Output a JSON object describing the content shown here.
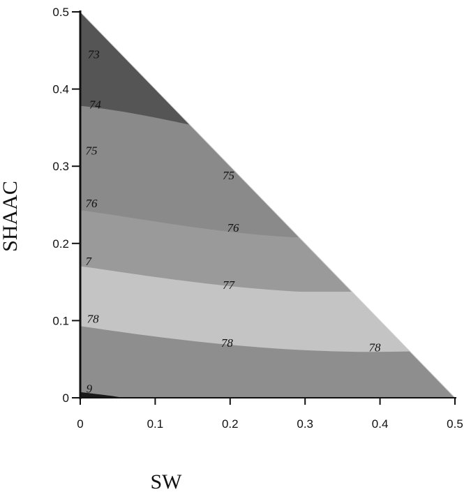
{
  "chart_data": {
    "type": "contour",
    "xlabel": "SW",
    "ylabel": "SHAAC",
    "xlim": [
      0,
      0.5
    ],
    "ylim": [
      0,
      0.5
    ],
    "xticks": [
      "0",
      "0.1",
      "0.2",
      "0.3",
      "0.4",
      "0.5"
    ],
    "yticks": [
      "0",
      "0.1",
      "0.2",
      "0.3",
      "0.4",
      "0.5"
    ],
    "region": "triangle SW + SHAAC <= 0.5",
    "bands": [
      {
        "range": "< 74",
        "color": "#1a1a1a"
      },
      {
        "range": "74-75",
        "color": "#555555"
      },
      {
        "range": "75-76",
        "color": "#8a8a8a"
      },
      {
        "range": "76-77",
        "color": "#9a9a9a"
      },
      {
        "range": "77-78",
        "color": "#c4c4c4"
      },
      {
        "range": "> 78",
        "color": "#8e8e8e"
      }
    ],
    "contour_labels": [
      {
        "text": "73",
        "x": 0.01,
        "y": 0.44
      },
      {
        "text": "74",
        "x": 0.012,
        "y": 0.375
      },
      {
        "text": "75",
        "x": 0.007,
        "y": 0.315
      },
      {
        "text": "75",
        "x": 0.19,
        "y": 0.283
      },
      {
        "text": "76",
        "x": 0.007,
        "y": 0.247
      },
      {
        "text": "76",
        "x": 0.196,
        "y": 0.215
      },
      {
        "text": "7",
        "x": 0.007,
        "y": 0.172
      },
      {
        "text": "77",
        "x": 0.19,
        "y": 0.141
      },
      {
        "text": "78",
        "x": 0.009,
        "y": 0.097
      },
      {
        "text": "78",
        "x": 0.188,
        "y": 0.066
      },
      {
        "text": "78",
        "x": 0.385,
        "y": 0.06
      },
      {
        "text": "9",
        "x": 0.008,
        "y": 0.007
      }
    ]
  }
}
